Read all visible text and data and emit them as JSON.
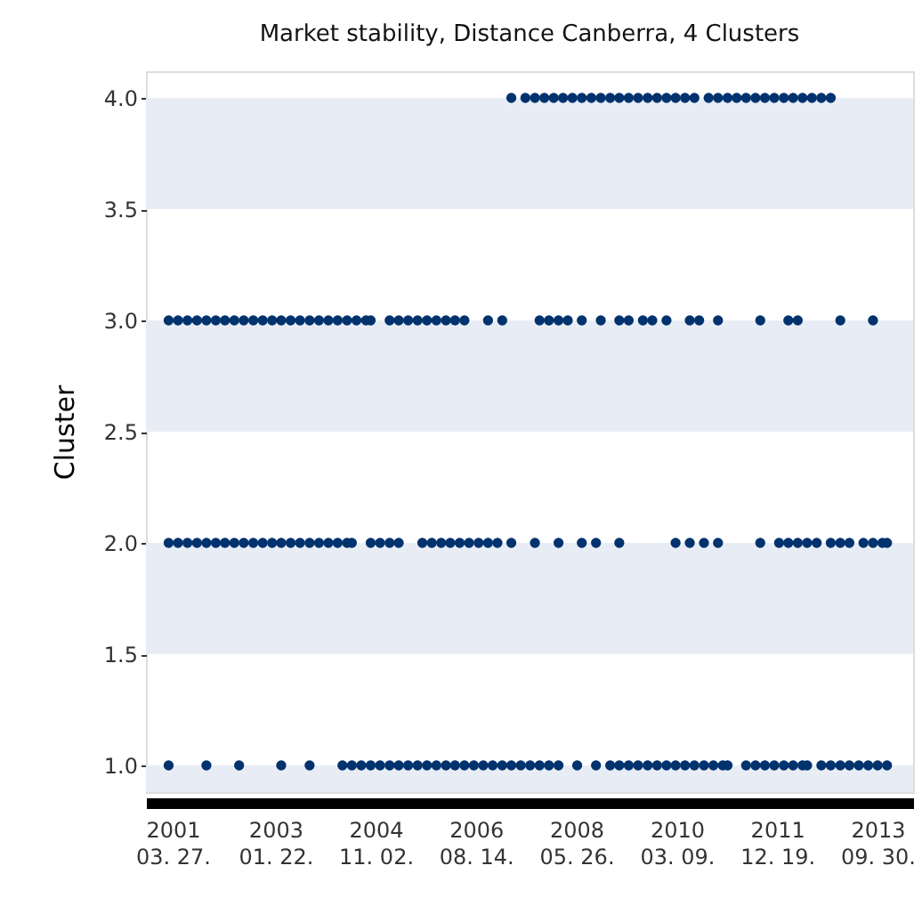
{
  "chart_data": {
    "type": "scatter",
    "title": "Market stability, Distance Canberra, 4 Clusters",
    "ylabel": "Cluster",
    "marker": "circle",
    "xlim": [
      "2000-10-05",
      "2014-05-19"
    ],
    "xticks": [
      {
        "value": "2001-03-27",
        "label": "2001\n03. 27."
      },
      {
        "value": "2003-01-22",
        "label": "2003\n01. 22."
      },
      {
        "value": "2004-11-02",
        "label": "2004\n11. 02."
      },
      {
        "value": "2006-08-14",
        "label": "2006\n08. 14."
      },
      {
        "value": "2008-05-26",
        "label": "2008\n05. 26."
      },
      {
        "value": "2010-03-09",
        "label": "2010\n03. 09."
      },
      {
        "value": "2011-12-19",
        "label": "2011\n12. 19."
      },
      {
        "value": "2013-09-30",
        "label": "2013\n09. 30."
      }
    ],
    "ylim": [
      0.88,
      4.12
    ],
    "yticks": [
      {
        "value": 1,
        "label": "1.0"
      },
      {
        "value": 1.5,
        "label": "1.5"
      },
      {
        "value": 2,
        "label": "2.0"
      },
      {
        "value": 2.5,
        "label": "2.5"
      },
      {
        "value": 3,
        "label": "3.0"
      },
      {
        "value": 3.5,
        "label": "3.5"
      },
      {
        "value": 4,
        "label": "4.0"
      }
    ],
    "bands": [
      {
        "axis": "y",
        "from": 3.5,
        "to": 4.0,
        "color": "#e8edf5"
      },
      {
        "axis": "y",
        "from": 2.5,
        "to": 3.0,
        "color": "#e8edf5"
      },
      {
        "axis": "y",
        "from": 1.5,
        "to": 2.0,
        "color": "#e8edf5"
      },
      {
        "axis": "y",
        "from": 0.88,
        "to": 1.0,
        "color": "#e8edf5"
      }
    ],
    "series": [
      {
        "color": "#00326e",
        "x": [
          "2007-04",
          "2007-07",
          "2007-09",
          "2007-11",
          "2008-01",
          "2008-03",
          "2008-05",
          "2008-07",
          "2008-09",
          "2008-11",
          "2009-01",
          "2009-03",
          "2009-05",
          "2009-07",
          "2009-09",
          "2009-11",
          "2010-01",
          "2010-03",
          "2010-05",
          "2010-07",
          "2010-10",
          "2010-12",
          "2011-02",
          "2011-04",
          "2011-06",
          "2011-08",
          "2011-10",
          "2011-12",
          "2012-02",
          "2012-04",
          "2012-06",
          "2012-08",
          "2012-10",
          "2012-12"
        ],
        "values": [
          4,
          4,
          4,
          4,
          4,
          4,
          4,
          4,
          4,
          4,
          4,
          4,
          4,
          4,
          4,
          4,
          4,
          4,
          4,
          4,
          4,
          4,
          4,
          4,
          4,
          4,
          4,
          4,
          4,
          4,
          4,
          4,
          4,
          4
        ]
      },
      {
        "color": "#00326e",
        "x": [
          "2001-03",
          "2001-05",
          "2001-07",
          "2001-09",
          "2001-11",
          "2002-01",
          "2002-03",
          "2002-05",
          "2002-07",
          "2002-09",
          "2002-11",
          "2003-01",
          "2003-03",
          "2003-05",
          "2003-07",
          "2003-09",
          "2003-11",
          "2004-01",
          "2004-03",
          "2004-05",
          "2004-07",
          "2004-09",
          "2004-10",
          "2005-02",
          "2005-04",
          "2005-06",
          "2005-08",
          "2005-10",
          "2005-12",
          "2006-02",
          "2006-04",
          "2006-06",
          "2006-11",
          "2007-02",
          "2007-10",
          "2007-12",
          "2008-02",
          "2008-04",
          "2008-07",
          "2008-11",
          "2009-03",
          "2009-05",
          "2009-08",
          "2009-10",
          "2010-01",
          "2010-06",
          "2010-08",
          "2010-12",
          "2011-09",
          "2012-03",
          "2012-05",
          "2013-02",
          "2013-09"
        ],
        "values": [
          3,
          3,
          3,
          3,
          3,
          3,
          3,
          3,
          3,
          3,
          3,
          3,
          3,
          3,
          3,
          3,
          3,
          3,
          3,
          3,
          3,
          3,
          3,
          3,
          3,
          3,
          3,
          3,
          3,
          3,
          3,
          3,
          3,
          3,
          3,
          3,
          3,
          3,
          3,
          3,
          3,
          3,
          3,
          3,
          3,
          3,
          3,
          3,
          3,
          3,
          3,
          3,
          3
        ]
      },
      {
        "color": "#00326e",
        "x": [
          "2001-03",
          "2001-05",
          "2001-07",
          "2001-09",
          "2001-11",
          "2002-01",
          "2002-03",
          "2002-05",
          "2002-07",
          "2002-09",
          "2002-11",
          "2003-01",
          "2003-03",
          "2003-05",
          "2003-07",
          "2003-09",
          "2003-11",
          "2004-01",
          "2004-03",
          "2004-05",
          "2004-06",
          "2004-10",
          "2004-12",
          "2005-02",
          "2005-04",
          "2005-09",
          "2005-11",
          "2006-01",
          "2006-03",
          "2006-05",
          "2006-07",
          "2006-09",
          "2006-11",
          "2007-01",
          "2007-04",
          "2007-09",
          "2008-02",
          "2008-07",
          "2008-10",
          "2009-03",
          "2010-03",
          "2010-06",
          "2010-09",
          "2010-12",
          "2011-09",
          "2012-01",
          "2012-03",
          "2012-05",
          "2012-07",
          "2012-09",
          "2012-12",
          "2013-02",
          "2013-04",
          "2013-07",
          "2013-09",
          "2013-11",
          "2013-12"
        ],
        "values": [
          2,
          2,
          2,
          2,
          2,
          2,
          2,
          2,
          2,
          2,
          2,
          2,
          2,
          2,
          2,
          2,
          2,
          2,
          2,
          2,
          2,
          2,
          2,
          2,
          2,
          2,
          2,
          2,
          2,
          2,
          2,
          2,
          2,
          2,
          2,
          2,
          2,
          2,
          2,
          2,
          2,
          2,
          2,
          2,
          2,
          2,
          2,
          2,
          2,
          2,
          2,
          2,
          2,
          2,
          2,
          2,
          2
        ]
      },
      {
        "color": "#00326e",
        "x": [
          "2001-03",
          "2001-11",
          "2002-06",
          "2003-03",
          "2003-09",
          "2004-04",
          "2004-06",
          "2004-08",
          "2004-10",
          "2004-12",
          "2005-02",
          "2005-04",
          "2005-06",
          "2005-08",
          "2005-10",
          "2005-12",
          "2006-02",
          "2006-04",
          "2006-06",
          "2006-08",
          "2006-10",
          "2006-12",
          "2007-02",
          "2007-04",
          "2007-06",
          "2007-08",
          "2007-10",
          "2007-12",
          "2008-02",
          "2008-06",
          "2008-10",
          "2009-01",
          "2009-03",
          "2009-05",
          "2009-07",
          "2009-09",
          "2009-11",
          "2010-01",
          "2010-03",
          "2010-05",
          "2010-07",
          "2010-09",
          "2010-11",
          "2011-01",
          "2011-02",
          "2011-06",
          "2011-08",
          "2011-10",
          "2011-12",
          "2012-02",
          "2012-04",
          "2012-06",
          "2012-07",
          "2012-10",
          "2012-12",
          "2013-02",
          "2013-04",
          "2013-06",
          "2013-08",
          "2013-10",
          "2013-12"
        ],
        "values": [
          1,
          1,
          1,
          1,
          1,
          1,
          1,
          1,
          1,
          1,
          1,
          1,
          1,
          1,
          1,
          1,
          1,
          1,
          1,
          1,
          1,
          1,
          1,
          1,
          1,
          1,
          1,
          1,
          1,
          1,
          1,
          1,
          1,
          1,
          1,
          1,
          1,
          1,
          1,
          1,
          1,
          1,
          1,
          1,
          1,
          1,
          1,
          1,
          1,
          1,
          1,
          1,
          1,
          1,
          1,
          1,
          1,
          1,
          1,
          1,
          1
        ]
      }
    ]
  }
}
